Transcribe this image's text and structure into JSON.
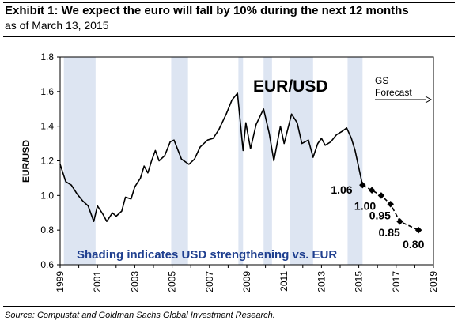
{
  "header": {
    "title": "Exhibit 1:  We expect the euro will fall by 10% during the next 12 months",
    "subtitle": "as of March 13, 2015"
  },
  "footer": {
    "source": "Source: Compustat and Goldman Sachs Global Investment Research."
  },
  "chart_data": {
    "type": "line",
    "title": "EUR/USD",
    "ylabel": "EUR/USD",
    "xlabel": "",
    "xlim": [
      1999,
      2019
    ],
    "ylim": [
      0.6,
      1.8
    ],
    "x_ticks": [
      "1999",
      "2001",
      "2003",
      "2005",
      "2007",
      "2009",
      "2011",
      "2013",
      "2015",
      "2017",
      "2019"
    ],
    "y_ticks": [
      "0.6",
      "0.8",
      "1.0",
      "1.2",
      "1.4",
      "1.6",
      "1.8"
    ],
    "grid": false,
    "colors": {
      "line": "#000000",
      "shading": "#dde5f2",
      "note": "#1f3f8f"
    },
    "shaded_periods": [
      [
        1999.2,
        2000.9
      ],
      [
        2004.95,
        2005.85
      ],
      [
        2008.55,
        2008.8
      ],
      [
        2009.9,
        2010.35
      ],
      [
        2011.3,
        2012.55
      ],
      [
        2014.4,
        2015.2
      ]
    ],
    "series": [
      {
        "values": [
          [
            1999.0,
            1.18
          ],
          [
            1999.3,
            1.08
          ],
          [
            1999.6,
            1.06
          ],
          [
            1999.9,
            1.01
          ],
          [
            2000.2,
            0.97
          ],
          [
            2000.5,
            0.94
          ],
          [
            2000.8,
            0.85
          ],
          [
            2001.0,
            0.94
          ],
          [
            2001.3,
            0.89
          ],
          [
            2001.5,
            0.85
          ],
          [
            2001.8,
            0.9
          ],
          [
            2002.0,
            0.88
          ],
          [
            2002.3,
            0.91
          ],
          [
            2002.5,
            0.99
          ],
          [
            2002.8,
            0.98
          ],
          [
            2003.0,
            1.05
          ],
          [
            2003.3,
            1.1
          ],
          [
            2003.5,
            1.17
          ],
          [
            2003.7,
            1.13
          ],
          [
            2003.9,
            1.2
          ],
          [
            2004.1,
            1.26
          ],
          [
            2004.3,
            1.2
          ],
          [
            2004.6,
            1.23
          ],
          [
            2004.9,
            1.31
          ],
          [
            2005.1,
            1.32
          ],
          [
            2005.5,
            1.21
          ],
          [
            2005.9,
            1.18
          ],
          [
            2006.2,
            1.21
          ],
          [
            2006.5,
            1.28
          ],
          [
            2006.9,
            1.32
          ],
          [
            2007.2,
            1.33
          ],
          [
            2007.5,
            1.38
          ],
          [
            2007.9,
            1.47
          ],
          [
            2008.2,
            1.55
          ],
          [
            2008.5,
            1.59
          ],
          [
            2008.8,
            1.26
          ],
          [
            2008.95,
            1.42
          ],
          [
            2009.2,
            1.27
          ],
          [
            2009.5,
            1.41
          ],
          [
            2009.9,
            1.5
          ],
          [
            2010.2,
            1.36
          ],
          [
            2010.45,
            1.2
          ],
          [
            2010.8,
            1.4
          ],
          [
            2011.0,
            1.3
          ],
          [
            2011.4,
            1.47
          ],
          [
            2011.7,
            1.42
          ],
          [
            2011.95,
            1.3
          ],
          [
            2012.3,
            1.32
          ],
          [
            2012.55,
            1.22
          ],
          [
            2012.8,
            1.3
          ],
          [
            2013.0,
            1.33
          ],
          [
            2013.2,
            1.29
          ],
          [
            2013.5,
            1.31
          ],
          [
            2013.8,
            1.35
          ],
          [
            2014.1,
            1.37
          ],
          [
            2014.35,
            1.39
          ],
          [
            2014.6,
            1.33
          ],
          [
            2014.8,
            1.26
          ],
          [
            2015.0,
            1.16
          ],
          [
            2015.2,
            1.06
          ]
        ]
      },
      {
        "name": "GS Forecast",
        "style": "dashed",
        "values": [
          [
            2015.2,
            1.06
          ],
          [
            2015.7,
            1.03
          ],
          [
            2016.2,
            1.0
          ],
          [
            2016.7,
            0.95
          ],
          [
            2017.2,
            0.85
          ],
          [
            2018.2,
            0.8
          ]
        ]
      }
    ],
    "labels": [
      {
        "text": "1.06",
        "x": 2015.2,
        "y": 1.06
      },
      {
        "text": "1.00",
        "x": 2016.2,
        "y": 1.0
      },
      {
        "text": "0.95",
        "x": 2016.7,
        "y": 0.95
      },
      {
        "text": "0.85",
        "x": 2017.2,
        "y": 0.85
      },
      {
        "text": "0.80",
        "x": 2018.2,
        "y": 0.8
      }
    ],
    "annotations": {
      "forecast_label_line1": "GS",
      "forecast_label_line2": "Forecast",
      "shading_note": "Shading indicates USD strengthening vs. EUR"
    }
  }
}
